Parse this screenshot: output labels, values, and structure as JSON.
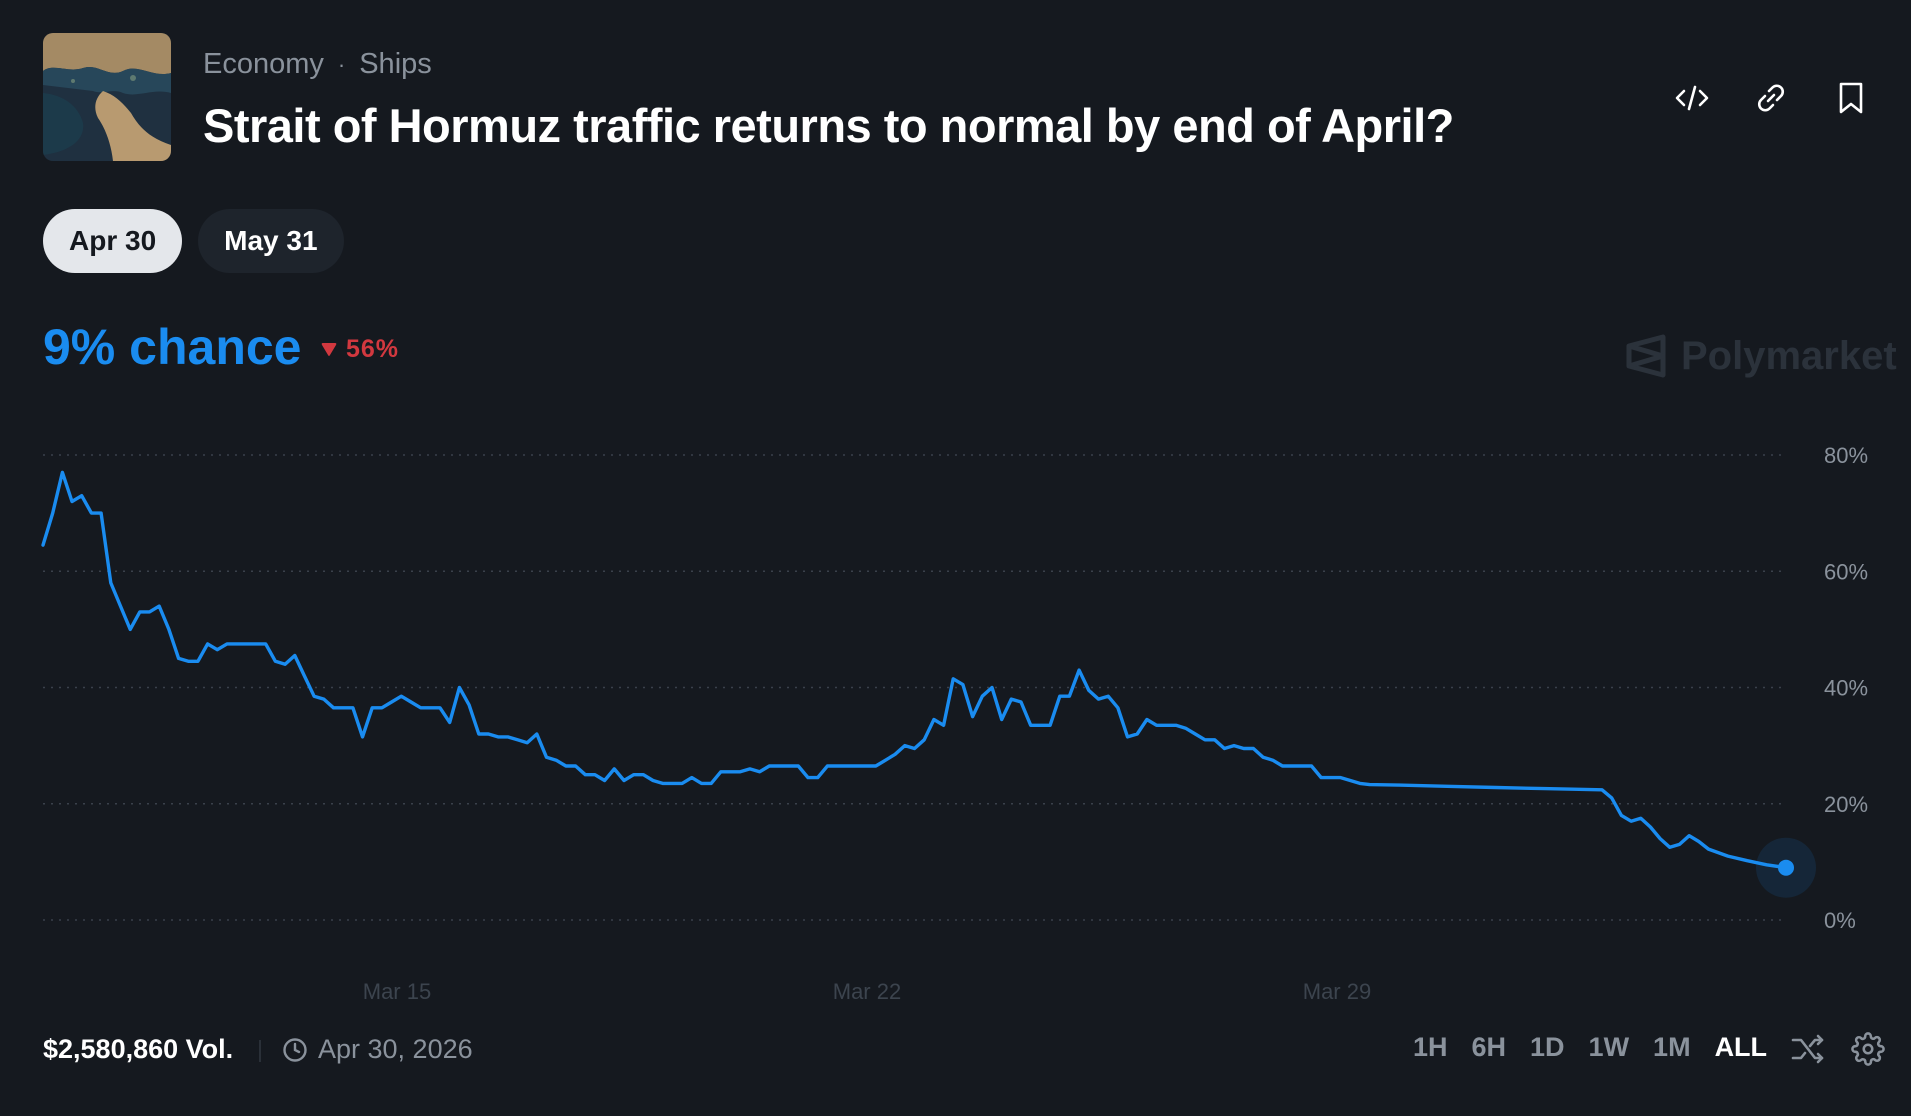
{
  "header": {
    "category": "Economy",
    "subcategory": "Ships",
    "title": "Strait of Hormuz traffic returns to normal by end of April?"
  },
  "tabs": [
    {
      "label": "Apr 30",
      "active": true
    },
    {
      "label": "May 31",
      "active": false
    }
  ],
  "odds": {
    "chance_label": "9% chance",
    "delta_label": "56%",
    "delta_direction": "down",
    "accent": "#1a8cf0",
    "negative": "#d2383f"
  },
  "brand": "Polymarket",
  "chart_data": {
    "type": "line",
    "ylim": [
      0,
      80
    ],
    "yticks": [
      "80%",
      "60%",
      "40%",
      "20%",
      "0%"
    ],
    "xticks": [
      "Mar 15",
      "Mar 22",
      "Mar 29"
    ],
    "grid": true,
    "series": [
      {
        "color": "#1a8cf0",
        "points": [
          [
            0,
            64.5
          ],
          [
            1,
            70
          ],
          [
            2,
            77
          ],
          [
            3,
            72
          ],
          [
            4,
            73
          ],
          [
            5,
            70
          ],
          [
            6,
            70
          ],
          [
            7,
            58
          ],
          [
            8,
            54
          ],
          [
            9,
            50
          ],
          [
            10,
            53
          ],
          [
            11,
            53
          ],
          [
            12,
            54
          ],
          [
            13,
            50
          ],
          [
            14,
            45
          ],
          [
            15,
            44.5
          ],
          [
            16,
            44.5
          ],
          [
            17,
            47.5
          ],
          [
            18,
            46.5
          ],
          [
            19,
            47.5
          ],
          [
            20,
            47.5
          ],
          [
            21,
            47.5
          ],
          [
            22,
            47.5
          ],
          [
            23,
            47.5
          ],
          [
            24,
            44.5
          ],
          [
            25,
            44
          ],
          [
            26,
            45.5
          ],
          [
            27,
            42
          ],
          [
            28,
            38.5
          ],
          [
            29,
            38
          ],
          [
            30,
            36.5
          ],
          [
            31,
            36.5
          ],
          [
            32,
            36.5
          ],
          [
            33,
            31.5
          ],
          [
            34,
            36.5
          ],
          [
            35,
            36.5
          ],
          [
            36,
            37.5
          ],
          [
            37,
            38.5
          ],
          [
            38,
            37.5
          ],
          [
            39,
            36.5
          ],
          [
            40,
            36.5
          ],
          [
            41,
            36.5
          ],
          [
            42,
            34
          ],
          [
            43,
            40
          ],
          [
            44,
            37
          ],
          [
            45,
            32
          ],
          [
            46,
            32
          ],
          [
            47,
            31.5
          ],
          [
            48,
            31.5
          ],
          [
            49,
            31
          ],
          [
            50,
            30.5
          ],
          [
            51,
            32
          ],
          [
            52,
            28
          ],
          [
            53,
            27.5
          ],
          [
            54,
            26.5
          ],
          [
            55,
            26.5
          ],
          [
            56,
            25
          ],
          [
            57,
            25
          ],
          [
            58,
            24
          ],
          [
            59,
            26
          ],
          [
            60,
            24
          ],
          [
            61,
            25
          ],
          [
            62,
            25
          ],
          [
            63,
            24
          ],
          [
            64,
            23.5
          ],
          [
            65,
            23.5
          ],
          [
            66,
            23.5
          ],
          [
            67,
            24.5
          ],
          [
            68,
            23.5
          ],
          [
            69,
            23.5
          ],
          [
            70,
            25.5
          ],
          [
            71,
            25.5
          ],
          [
            72,
            25.5
          ],
          [
            73,
            26
          ],
          [
            74,
            25.5
          ],
          [
            75,
            26.5
          ],
          [
            76,
            26.5
          ],
          [
            77,
            26.5
          ],
          [
            78,
            26.5
          ],
          [
            79,
            24.5
          ],
          [
            80,
            24.5
          ],
          [
            81,
            26.5
          ],
          [
            82,
            26.5
          ],
          [
            83,
            26.5
          ],
          [
            84,
            26.5
          ],
          [
            85,
            26.5
          ],
          [
            86,
            26.5
          ],
          [
            87,
            27.5
          ],
          [
            88,
            28.5
          ],
          [
            89,
            30
          ],
          [
            90,
            29.5
          ],
          [
            91,
            31
          ],
          [
            92,
            34.5
          ],
          [
            93,
            33.5
          ],
          [
            94,
            41.5
          ],
          [
            95,
            40.5
          ],
          [
            96,
            35
          ],
          [
            97,
            38.5
          ],
          [
            98,
            40
          ],
          [
            99,
            34.5
          ],
          [
            100,
            38
          ],
          [
            101,
            37.5
          ],
          [
            102,
            33.5
          ],
          [
            103,
            33.5
          ],
          [
            104,
            33.5
          ],
          [
            105,
            38.5
          ],
          [
            106,
            38.5
          ],
          [
            107,
            43
          ],
          [
            108,
            39.5
          ],
          [
            109,
            38
          ],
          [
            110,
            38.5
          ],
          [
            111,
            36.5
          ],
          [
            112,
            31.5
          ],
          [
            113,
            32
          ],
          [
            114,
            34.5
          ],
          [
            115,
            33.5
          ],
          [
            116,
            33.5
          ],
          [
            117,
            33.5
          ],
          [
            118,
            33
          ],
          [
            119,
            32
          ],
          [
            120,
            31
          ],
          [
            121,
            31
          ],
          [
            122,
            29.5
          ],
          [
            123,
            30
          ],
          [
            124,
            29.5
          ],
          [
            125,
            29.5
          ],
          [
            126,
            28
          ],
          [
            127,
            27.5
          ],
          [
            128,
            26.5
          ],
          [
            129,
            26.5
          ],
          [
            130,
            26.5
          ],
          [
            131,
            26.5
          ],
          [
            132,
            24.5
          ],
          [
            133,
            24.5
          ],
          [
            134,
            24.5
          ],
          [
            135,
            24
          ],
          [
            136,
            23.5
          ],
          [
            137,
            23.3
          ],
          [
            140,
            23.2
          ],
          [
            145,
            23
          ],
          [
            150,
            22.8
          ],
          [
            155,
            22.6
          ],
          [
            158,
            22.5
          ],
          [
            161,
            22.4
          ],
          [
            162,
            21
          ],
          [
            163,
            18
          ],
          [
            164,
            17
          ],
          [
            165,
            17.5
          ],
          [
            166,
            16
          ],
          [
            167,
            14
          ],
          [
            168,
            12.5
          ],
          [
            169,
            13
          ],
          [
            170,
            14.5
          ],
          [
            171,
            13.5
          ],
          [
            172,
            12.2
          ],
          [
            174,
            11
          ],
          [
            176,
            10.2
          ],
          [
            178,
            9.5
          ],
          [
            180,
            9
          ]
        ]
      }
    ]
  },
  "footer": {
    "volume": "$2,580,860 Vol.",
    "date": "Apr 30, 2026",
    "ranges": [
      "1H",
      "6H",
      "1D",
      "1W",
      "1M",
      "ALL"
    ],
    "active_range": "ALL"
  }
}
